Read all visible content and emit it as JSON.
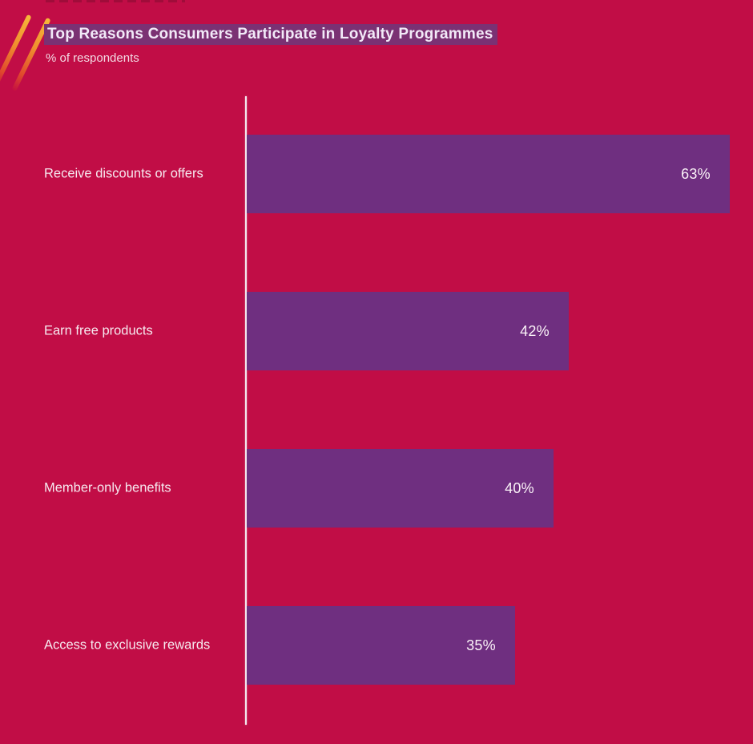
{
  "page": {
    "background_color": "#C10D46"
  },
  "header": {
    "title_highlight_color": "#7B3173"
  },
  "chart_data": {
    "type": "bar",
    "orientation": "horizontal",
    "title": "Top Reasons Consumers Participate in Loyalty Programmes",
    "subtitle": "% of respondents",
    "categories": [
      "Receive discounts or offers",
      "Earn free products",
      "Member-only benefits",
      "Access to exclusive rewards"
    ],
    "values": [
      63,
      42,
      40,
      35
    ],
    "value_labels": [
      "63%",
      "42%",
      "40%",
      "35%"
    ],
    "unit": "%",
    "xlim": [
      0,
      66
    ],
    "bar_color": "#6F2F80",
    "axis_line_color": "#F3E8EE",
    "label_color": "#F6E9EF",
    "value_label_color": "#FBF3F8",
    "grid": false,
    "legend": false
  }
}
